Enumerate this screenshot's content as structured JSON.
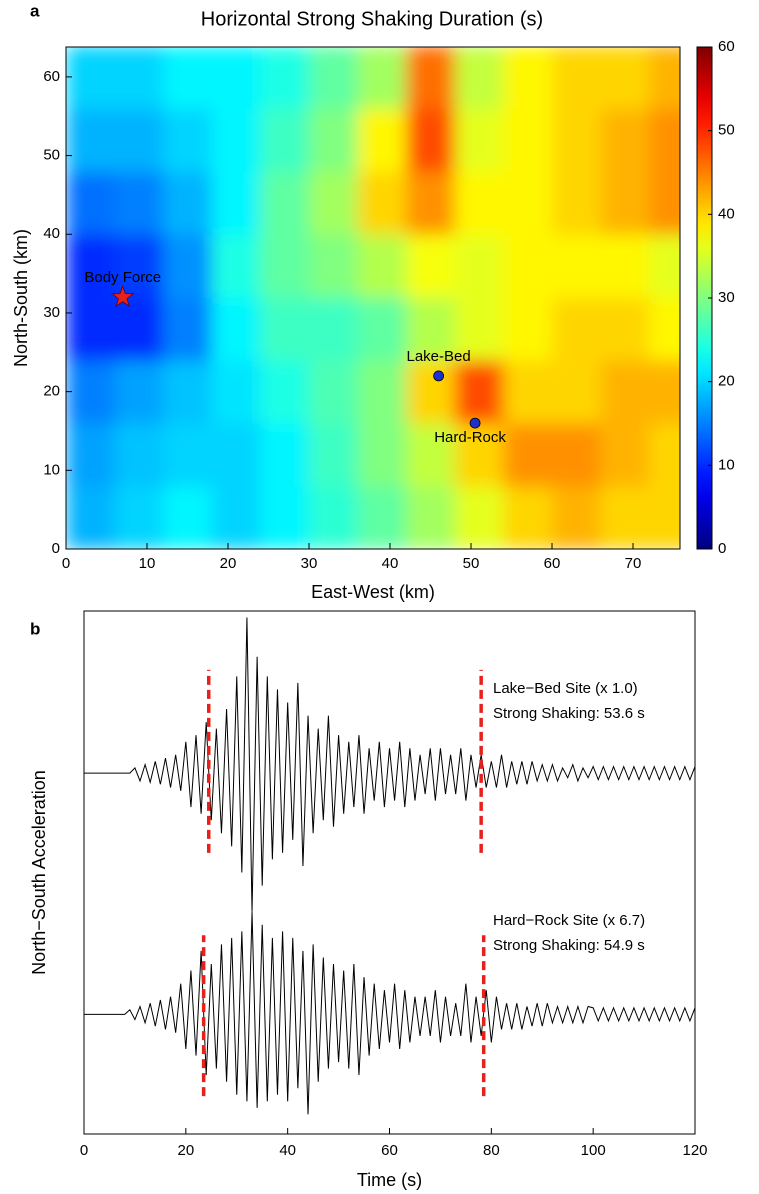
{
  "panels": [
    "a",
    "b"
  ],
  "chart_data": [
    {
      "type": "heatmap",
      "title": "Horizontal Strong Shaking Duration (s)",
      "x_label": "East-West (km)",
      "y_label": "North-South (km)",
      "xlim": [
        0,
        75.8
      ],
      "ylim": [
        0,
        63.8
      ],
      "xticks": [
        0,
        10,
        20,
        30,
        40,
        50,
        60,
        70
      ],
      "yticks": [
        0,
        10,
        20,
        30,
        40,
        50,
        60
      ],
      "xbins": [
        0,
        6,
        12,
        18,
        24,
        30,
        36,
        42,
        48,
        54,
        60,
        66,
        72,
        78
      ],
      "ybins": [
        0,
        8,
        16,
        24,
        32,
        40,
        48,
        56,
        64
      ],
      "z": [
        [
          18,
          20,
          22,
          20,
          22,
          25,
          28,
          32,
          36,
          40,
          42,
          40,
          40
        ],
        [
          17,
          19,
          20,
          20,
          22,
          26,
          30,
          34,
          40,
          44,
          44,
          42,
          40
        ],
        [
          15,
          17,
          19,
          21,
          24,
          27,
          30,
          40,
          48,
          40,
          40,
          42,
          42
        ],
        [
          10,
          10,
          15,
          22,
          26,
          26,
          28,
          33,
          36,
          38,
          40,
          40,
          38
        ],
        [
          10,
          11,
          16,
          24,
          28,
          30,
          33,
          37,
          36,
          38,
          38,
          38,
          36
        ],
        [
          14,
          15,
          18,
          22,
          28,
          32,
          40,
          44,
          38,
          38,
          40,
          42,
          44
        ],
        [
          18,
          18,
          20,
          22,
          26,
          30,
          38,
          48,
          36,
          38,
          40,
          42,
          44
        ],
        [
          20,
          20,
          22,
          22,
          24,
          28,
          32,
          46,
          34,
          38,
          40,
          40,
          42
        ]
      ],
      "colormap": "jet",
      "clim": [
        0,
        60
      ],
      "cticks": [
        0,
        10,
        20,
        30,
        40,
        50,
        60
      ],
      "points": [
        {
          "label": "Body Force",
          "x": 7,
          "y": 32,
          "marker": "star",
          "color": "#e8201c"
        },
        {
          "label": "Lake-Bed",
          "x": 46,
          "y": 22,
          "marker": "circle",
          "color": "#1f2fd0"
        },
        {
          "label": "Hard-Rock",
          "x": 50.5,
          "y": 16,
          "marker": "circle",
          "color": "#1f2fd0"
        }
      ]
    },
    {
      "type": "line",
      "x_label": "Time (s)",
      "y_label": "North−South Acceleration",
      "xlim": [
        0,
        120
      ],
      "ylim": [
        0,
        8
      ],
      "xticks": [
        0,
        20,
        40,
        60,
        80,
        100,
        120
      ],
      "x": [
        0,
        1,
        2,
        3,
        4,
        5,
        6,
        7,
        8,
        9,
        10,
        11,
        12,
        13,
        14,
        15,
        16,
        17,
        18,
        19,
        20,
        21,
        22,
        23,
        24,
        25,
        26,
        27,
        28,
        29,
        30,
        31,
        32,
        33,
        34,
        35,
        36,
        37,
        38,
        39,
        40,
        41,
        42,
        43,
        44,
        45,
        46,
        47,
        48,
        49,
        50,
        51,
        52,
        53,
        54,
        55,
        56,
        57,
        58,
        59,
        60,
        61,
        62,
        63,
        64,
        65,
        66,
        67,
        68,
        69,
        70,
        71,
        72,
        73,
        74,
        75,
        76,
        77,
        78,
        79,
        80,
        81,
        82,
        83,
        84,
        85,
        86,
        87,
        88,
        89,
        90,
        91,
        92,
        93,
        94,
        95,
        96,
        97,
        98,
        99,
        100,
        101,
        102,
        103,
        104,
        105,
        106,
        107,
        108,
        109,
        110,
        111,
        112,
        113,
        114,
        115,
        116,
        117,
        118,
        119,
        120
      ],
      "series": [
        {
          "name": "Lake−Bed Site (x 1.0)",
          "annotation": "Strong Shaking: 53.6 s",
          "color": "#000000",
          "values": [
            5.52,
            5.52,
            5.52,
            5.52,
            5.52,
            5.52,
            5.52,
            5.52,
            5.52,
            5.52,
            5.6,
            5.4,
            5.65,
            5.38,
            5.7,
            5.35,
            5.75,
            5.3,
            5.8,
            5.25,
            6.0,
            5.0,
            6.1,
            4.9,
            6.3,
            4.8,
            6.2,
            4.6,
            6.5,
            4.4,
            7.0,
            4.0,
            7.9,
            3.4,
            7.3,
            3.8,
            7.0,
            4.2,
            6.8,
            4.3,
            6.6,
            4.5,
            6.9,
            4.1,
            6.4,
            4.6,
            6.2,
            4.8,
            6.4,
            4.7,
            6.1,
            4.9,
            6.0,
            5.0,
            6.1,
            4.9,
            5.9,
            5.1,
            6.0,
            5.0,
            5.9,
            5.1,
            6.0,
            5.0,
            5.9,
            5.1,
            5.8,
            5.2,
            5.9,
            5.1,
            5.9,
            5.2,
            5.8,
            5.2,
            5.9,
            5.1,
            5.8,
            5.3,
            5.8,
            5.3,
            5.7,
            5.3,
            5.8,
            5.3,
            5.7,
            5.35,
            5.7,
            5.35,
            5.7,
            5.4,
            5.65,
            5.4,
            5.65,
            5.4,
            5.6,
            5.45,
            5.65,
            5.4,
            5.6,
            5.45,
            5.62,
            5.42,
            5.62,
            5.42,
            5.62,
            5.42,
            5.62,
            5.42,
            5.62,
            5.42,
            5.62,
            5.42,
            5.62,
            5.42,
            5.62,
            5.42,
            5.62,
            5.42,
            5.62,
            5.42,
            5.62
          ],
          "segments": [
            {
              "x": 24.5,
              "y": [
                4.3,
                7.1
              ]
            },
            {
              "x": 78,
              "y": [
                4.3,
                7.1
              ]
            }
          ]
        },
        {
          "name": "Hard−Rock Site (x 6.7)",
          "annotation": "Strong Shaking: 54.9 s",
          "color": "#000000",
          "values": [
            1.83,
            1.83,
            1.83,
            1.83,
            1.83,
            1.83,
            1.83,
            1.83,
            1.83,
            1.9,
            1.75,
            1.95,
            1.7,
            2.0,
            1.65,
            2.05,
            1.6,
            2.1,
            1.55,
            2.3,
            1.3,
            2.5,
            1.2,
            2.8,
            0.9,
            2.6,
            1.0,
            2.9,
            0.8,
            3.0,
            0.6,
            3.1,
            0.5,
            3.4,
            0.4,
            3.2,
            0.5,
            3.0,
            0.6,
            3.1,
            0.5,
            3.0,
            0.7,
            2.8,
            0.3,
            2.9,
            0.8,
            2.7,
            1.0,
            2.6,
            1.1,
            2.5,
            1.0,
            2.6,
            0.9,
            2.4,
            1.2,
            2.3,
            1.3,
            2.2,
            1.4,
            2.3,
            1.3,
            2.2,
            1.4,
            2.1,
            1.5,
            2.1,
            1.5,
            2.2,
            1.4,
            2.1,
            1.5,
            2.0,
            1.5,
            2.3,
            1.4,
            2.1,
            1.5,
            2.2,
            1.4,
            2.1,
            1.6,
            2.0,
            1.6,
            2.0,
            1.6,
            1.95,
            1.65,
            2.0,
            1.65,
            2.0,
            1.7,
            1.95,
            1.7,
            1.95,
            1.7,
            1.95,
            1.7,
            1.95,
            1.93,
            1.73,
            1.93,
            1.73,
            1.93,
            1.73,
            1.93,
            1.73,
            1.93,
            1.73,
            1.93,
            1.73,
            1.93,
            1.73,
            1.93,
            1.73,
            1.93,
            1.73,
            1.93,
            1.73,
            1.93
          ],
          "segments": [
            {
              "x": 23.5,
              "y": [
                0.58,
                3.04
              ]
            },
            {
              "x": 78.5,
              "y": [
                0.58,
                3.04
              ]
            }
          ]
        }
      ]
    }
  ]
}
